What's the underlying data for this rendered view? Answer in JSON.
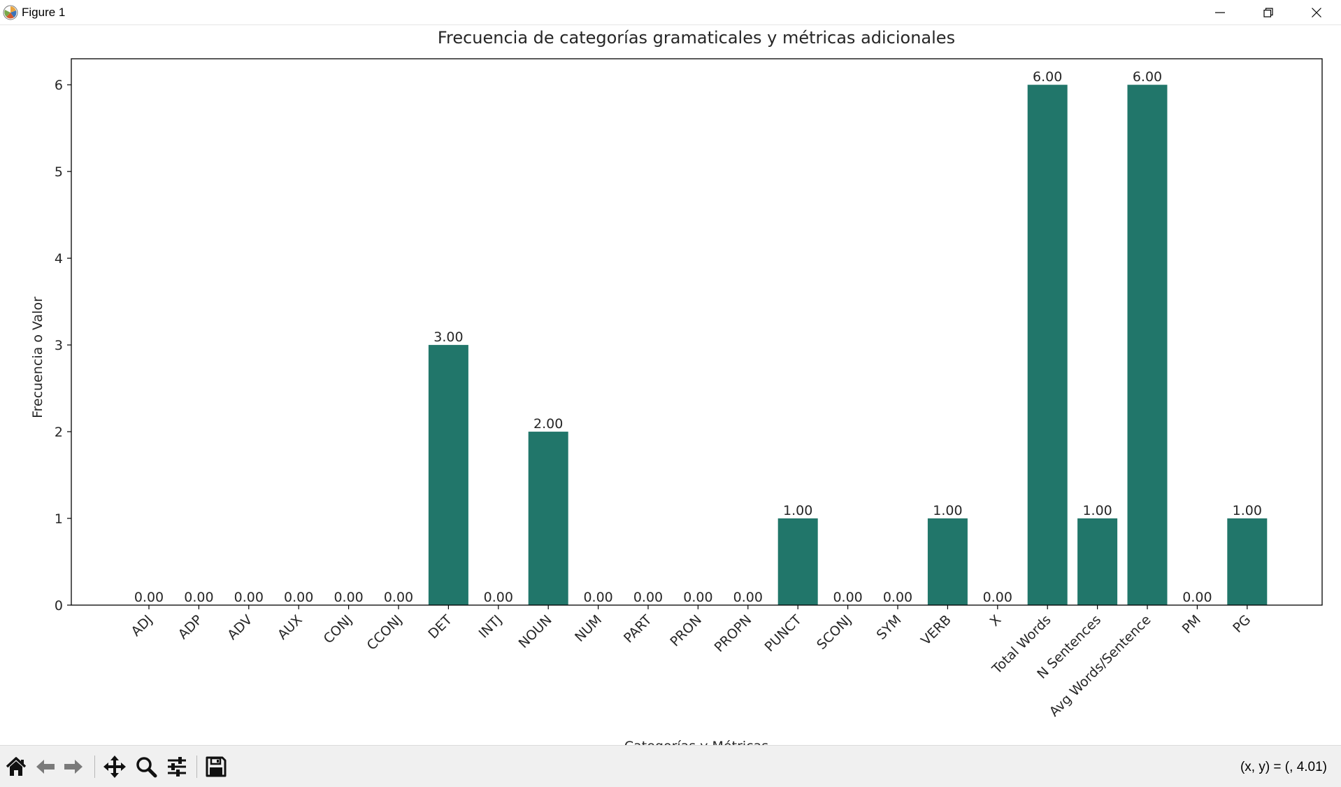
{
  "window": {
    "title": "Figure 1",
    "icons": {
      "app": "matplotlib-icon",
      "minimize": "minimize-icon",
      "restore": "restore-icon",
      "close": "close-icon"
    }
  },
  "chart_data": {
    "type": "bar",
    "title": "Frecuencia de categorías gramaticales y métricas adicionales",
    "xlabel": "Categorías y Métricas",
    "ylabel": "Frecuencia o Valor",
    "categories": [
      "ADJ",
      "ADP",
      "ADV",
      "AUX",
      "CONJ",
      "CCONJ",
      "DET",
      "INTJ",
      "NOUN",
      "NUM",
      "PART",
      "PRON",
      "PROPN",
      "PUNCT",
      "SCONJ",
      "SYM",
      "VERB",
      "X",
      "Total Words",
      "N Sentences",
      "Avg Words/Sentence",
      "PM",
      "PG"
    ],
    "values": [
      0,
      0,
      0,
      0,
      0,
      0,
      3,
      0,
      2,
      0,
      0,
      0,
      0,
      1,
      0,
      0,
      1,
      0,
      6,
      1,
      6,
      0,
      1
    ],
    "value_labels": [
      "0.00",
      "0.00",
      "0.00",
      "0.00",
      "0.00",
      "0.00",
      "3.00",
      "0.00",
      "2.00",
      "0.00",
      "0.00",
      "0.00",
      "0.00",
      "1.00",
      "0.00",
      "0.00",
      "1.00",
      "0.00",
      "6.00",
      "1.00",
      "6.00",
      "0.00",
      "1.00"
    ],
    "yticks": [
      "0",
      "1",
      "2",
      "3",
      "4",
      "5",
      "6"
    ],
    "ylim": [
      0,
      6.3
    ],
    "bar_color": "#21766a",
    "grid": false,
    "legend": "none"
  },
  "toolbar": {
    "buttons": [
      "home-icon",
      "back-icon",
      "forward-icon",
      "pan-icon",
      "zoom-icon",
      "configure-subplots-icon",
      "save-icon"
    ],
    "coords": "(x, y) = (, 4.01)"
  }
}
